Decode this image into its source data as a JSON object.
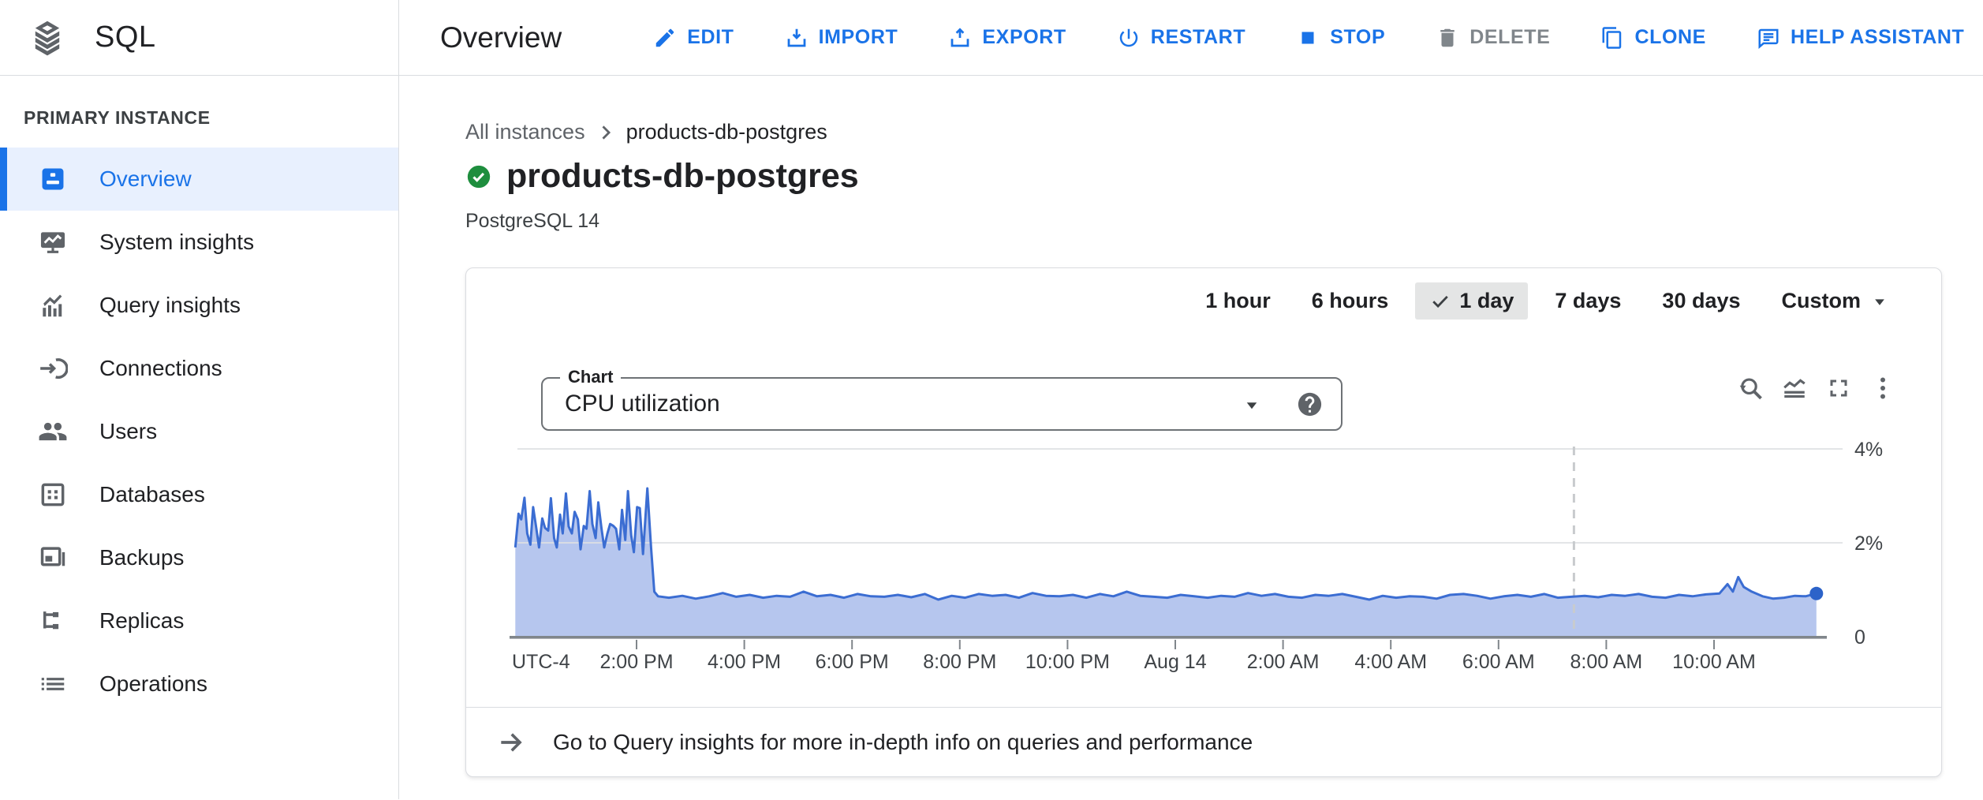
{
  "colors": {
    "accent_blue": "#1a73e8",
    "disabled_gray": "#80868b",
    "status_green": "#1e8e3e",
    "chip_selected_bg": "#e4e5e5",
    "chart_line": "#3b6dd2",
    "chart_fill": "#b6c6ee",
    "chart_dot": "#2c63c9"
  },
  "header": {
    "product": "SQL",
    "page_title": "Overview",
    "actions": [
      {
        "id": "edit",
        "label": "EDIT",
        "icon": "edit-pencil-icon",
        "enabled": true
      },
      {
        "id": "import",
        "label": "IMPORT",
        "icon": "import-icon",
        "enabled": true
      },
      {
        "id": "export",
        "label": "EXPORT",
        "icon": "export-icon",
        "enabled": true
      },
      {
        "id": "restart",
        "label": "RESTART",
        "icon": "restart-power-icon",
        "enabled": true
      },
      {
        "id": "stop",
        "label": "STOP",
        "icon": "stop-square-icon",
        "enabled": true
      },
      {
        "id": "delete",
        "label": "DELETE",
        "icon": "delete-trash-icon",
        "enabled": false
      },
      {
        "id": "clone",
        "label": "CLONE",
        "icon": "clone-copy-icon",
        "enabled": true
      },
      {
        "id": "help-assistant",
        "label": "HELP ASSISTANT",
        "icon": "help-assistant-chat-icon",
        "enabled": true,
        "push_right": true
      }
    ]
  },
  "sidebar": {
    "section_label": "PRIMARY INSTANCE",
    "items": [
      {
        "id": "overview",
        "label": "Overview",
        "icon": "overview-icon",
        "active": true
      },
      {
        "id": "system-insights",
        "label": "System insights",
        "icon": "system-insights-icon",
        "active": false
      },
      {
        "id": "query-insights",
        "label": "Query insights",
        "icon": "query-insights-icon",
        "active": false
      },
      {
        "id": "connections",
        "label": "Connections",
        "icon": "connections-icon",
        "active": false
      },
      {
        "id": "users",
        "label": "Users",
        "icon": "users-icon",
        "active": false
      },
      {
        "id": "databases",
        "label": "Databases",
        "icon": "databases-icon",
        "active": false
      },
      {
        "id": "backups",
        "label": "Backups",
        "icon": "backups-icon",
        "active": false
      },
      {
        "id": "replicas",
        "label": "Replicas",
        "icon": "replicas-icon",
        "active": false
      },
      {
        "id": "operations",
        "label": "Operations",
        "icon": "operations-icon",
        "active": false
      }
    ]
  },
  "main": {
    "breadcrumb": {
      "parent": "All instances",
      "current": "products-db-postgres"
    },
    "instance": {
      "name": "products-db-postgres",
      "status": "running",
      "engine": "PostgreSQL 14"
    },
    "metrics_card": {
      "time_ranges": [
        {
          "label": "1 hour",
          "selected": false
        },
        {
          "label": "6 hours",
          "selected": false
        },
        {
          "label": "1 day",
          "selected": true
        },
        {
          "label": "7 days",
          "selected": false
        },
        {
          "label": "30 days",
          "selected": false
        },
        {
          "label": "Custom",
          "selected": false,
          "dropdown": true
        }
      ],
      "chart_select": {
        "label": "Chart",
        "value": "CPU utilization"
      },
      "chart_tools": [
        {
          "id": "zoom-reset",
          "icon": "zoom-reset-icon"
        },
        {
          "id": "chart-style",
          "icon": "area-chart-icon"
        },
        {
          "id": "fullscreen",
          "icon": "fullscreen-icon"
        },
        {
          "id": "more-options",
          "icon": "more-vert-icon"
        }
      ],
      "footer_link": "Go to Query insights for more in-depth info on queries and performance"
    }
  },
  "chart_data": {
    "type": "area",
    "title": "CPU utilization",
    "unit": "%",
    "grid": true,
    "legend": false,
    "y_axis_side": "right",
    "ylim": [
      0,
      4.5
    ],
    "y_ticks": [
      {
        "value": 0,
        "label": "0"
      },
      {
        "value": 2,
        "label": "2%"
      },
      {
        "value": 4,
        "label": "4%"
      }
    ],
    "timezone_label": "UTC-4",
    "x_unit": "hours since window start (approx 11:45 AM Aug 13 to 11:55 AM Aug 14)",
    "x_ticks": [
      {
        "t": 2.25,
        "label": "2:00 PM"
      },
      {
        "t": 4.25,
        "label": "4:00 PM"
      },
      {
        "t": 6.25,
        "label": "6:00 PM"
      },
      {
        "t": 8.25,
        "label": "8:00 PM"
      },
      {
        "t": 10.25,
        "label": "10:00 PM"
      },
      {
        "t": 12.25,
        "label": "Aug 14"
      },
      {
        "t": 14.25,
        "label": "2:00 AM"
      },
      {
        "t": 16.25,
        "label": "4:00 AM"
      },
      {
        "t": 18.25,
        "label": "6:00 AM"
      },
      {
        "t": 20.25,
        "label": "8:00 AM"
      },
      {
        "t": 22.25,
        "label": "10:00 AM"
      }
    ],
    "now_marker_t": 19.65,
    "end_value_pct": 0.92,
    "series": [
      {
        "name": "CPU utilization",
        "color": "#3b6dd2",
        "fill": "#b6c6ee",
        "dot_color": "#2c63c9",
        "points": [
          [
            0,
            1.9
          ],
          [
            0.06,
            2.62
          ],
          [
            0.11,
            2.5
          ],
          [
            0.17,
            2.96
          ],
          [
            0.22,
            2.2
          ],
          [
            0.28,
            1.96
          ],
          [
            0.33,
            2.76
          ],
          [
            0.39,
            2.3
          ],
          [
            0.44,
            1.9
          ],
          [
            0.5,
            2.52
          ],
          [
            0.55,
            2.32
          ],
          [
            0.61,
            2.26
          ],
          [
            0.66,
            2.95
          ],
          [
            0.72,
            2.1
          ],
          [
            0.77,
            1.9
          ],
          [
            0.83,
            2.6
          ],
          [
            0.88,
            2.2
          ],
          [
            0.94,
            3.05
          ],
          [
            0.99,
            2.35
          ],
          [
            1.05,
            2.2
          ],
          [
            1.1,
            2.66
          ],
          [
            1.16,
            2.5
          ],
          [
            1.21,
            1.86
          ],
          [
            1.27,
            2.36
          ],
          [
            1.32,
            2.3
          ],
          [
            1.38,
            3.1
          ],
          [
            1.43,
            2.4
          ],
          [
            1.49,
            2.1
          ],
          [
            1.54,
            2.86
          ],
          [
            1.6,
            2.3
          ],
          [
            1.65,
            1.9
          ],
          [
            1.71,
            2.2
          ],
          [
            1.76,
            2.4
          ],
          [
            1.82,
            2.36
          ],
          [
            1.87,
            2.3
          ],
          [
            1.93,
            1.86
          ],
          [
            1.98,
            2.7
          ],
          [
            2.04,
            2.06
          ],
          [
            2.09,
            3.1
          ],
          [
            2.15,
            2.16
          ],
          [
            2.2,
            1.8
          ],
          [
            2.26,
            2.76
          ],
          [
            2.31,
            2.74
          ],
          [
            2.37,
            1.76
          ],
          [
            2.45,
            3.16
          ],
          [
            2.52,
            1.9
          ],
          [
            2.58,
            0.96
          ],
          [
            2.65,
            0.86
          ],
          [
            2.85,
            0.83
          ],
          [
            3.1,
            0.87
          ],
          [
            3.35,
            0.81
          ],
          [
            3.6,
            0.86
          ],
          [
            3.85,
            0.93
          ],
          [
            4.1,
            0.85
          ],
          [
            4.35,
            0.89
          ],
          [
            4.6,
            0.83
          ],
          [
            4.85,
            0.87
          ],
          [
            5.1,
            0.85
          ],
          [
            5.35,
            0.96
          ],
          [
            5.6,
            0.86
          ],
          [
            5.85,
            0.89
          ],
          [
            6.1,
            0.83
          ],
          [
            6.35,
            0.91
          ],
          [
            6.6,
            0.86
          ],
          [
            6.85,
            0.85
          ],
          [
            7.1,
            0.89
          ],
          [
            7.35,
            0.84
          ],
          [
            7.6,
            0.91
          ],
          [
            7.85,
            0.79
          ],
          [
            8.1,
            0.87
          ],
          [
            8.35,
            0.83
          ],
          [
            8.6,
            0.91
          ],
          [
            8.85,
            0.87
          ],
          [
            9.1,
            0.89
          ],
          [
            9.35,
            0.83
          ],
          [
            9.6,
            0.93
          ],
          [
            9.85,
            0.87
          ],
          [
            10.1,
            0.86
          ],
          [
            10.35,
            0.89
          ],
          [
            10.6,
            0.83
          ],
          [
            10.85,
            0.91
          ],
          [
            11.1,
            0.86
          ],
          [
            11.35,
            0.96
          ],
          [
            11.6,
            0.87
          ],
          [
            11.85,
            0.85
          ],
          [
            12.1,
            0.83
          ],
          [
            12.35,
            0.89
          ],
          [
            12.6,
            0.86
          ],
          [
            12.85,
            0.83
          ],
          [
            13.1,
            0.87
          ],
          [
            13.35,
            0.85
          ],
          [
            13.6,
            0.93
          ],
          [
            13.85,
            0.87
          ],
          [
            14.1,
            0.91
          ],
          [
            14.35,
            0.85
          ],
          [
            14.6,
            0.83
          ],
          [
            14.85,
            0.89
          ],
          [
            15.1,
            0.87
          ],
          [
            15.35,
            0.91
          ],
          [
            15.6,
            0.85
          ],
          [
            15.85,
            0.79
          ],
          [
            16.1,
            0.87
          ],
          [
            16.35,
            0.83
          ],
          [
            16.6,
            0.86
          ],
          [
            16.85,
            0.85
          ],
          [
            17.1,
            0.81
          ],
          [
            17.35,
            0.89
          ],
          [
            17.6,
            0.91
          ],
          [
            17.85,
            0.87
          ],
          [
            18.1,
            0.81
          ],
          [
            18.35,
            0.86
          ],
          [
            18.6,
            0.89
          ],
          [
            18.85,
            0.85
          ],
          [
            19.1,
            0.91
          ],
          [
            19.35,
            0.83
          ],
          [
            19.6,
            0.85
          ],
          [
            19.85,
            0.87
          ],
          [
            20.1,
            0.84
          ],
          [
            20.35,
            0.89
          ],
          [
            20.6,
            0.87
          ],
          [
            20.85,
            0.91
          ],
          [
            21.1,
            0.85
          ],
          [
            21.35,
            0.83
          ],
          [
            21.6,
            0.89
          ],
          [
            21.85,
            0.86
          ],
          [
            22.1,
            0.9
          ],
          [
            22.35,
            0.92
          ],
          [
            22.5,
            1.12
          ],
          [
            22.6,
            0.96
          ],
          [
            22.7,
            1.27
          ],
          [
            22.8,
            1.06
          ],
          [
            22.95,
            0.96
          ],
          [
            23.15,
            0.86
          ],
          [
            23.35,
            0.81
          ],
          [
            23.55,
            0.83
          ],
          [
            23.75,
            0.87
          ],
          [
            23.95,
            0.86
          ],
          [
            24.15,
            0.92
          ]
        ]
      }
    ]
  }
}
